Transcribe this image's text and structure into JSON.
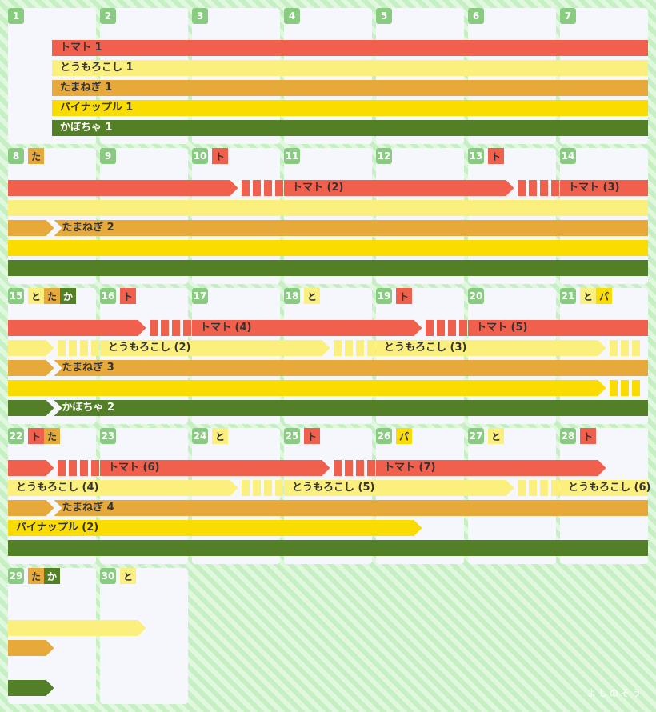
{
  "crops": {
    "tomato": {
      "label": "トマト",
      "short": "ト",
      "color": "#f0604d",
      "text_color": "#333333"
    },
    "corn": {
      "label": "とうもろこし",
      "short": "と",
      "color": "#fbef7e",
      "text_color": "#333333"
    },
    "onion": {
      "label": "たまねぎ",
      "short": "た",
      "color": "#e7a93a",
      "text_color": "#333333"
    },
    "pineapple": {
      "label": "パイナップル",
      "short": "パ",
      "color": "#fbdc00",
      "text_color": "#333333"
    },
    "pumpkin": {
      "label": "かぼちゃ",
      "short": "か",
      "color": "#537f27",
      "text_color": "#ffffff"
    }
  },
  "days": [
    {
      "day": 1,
      "badges": []
    },
    {
      "day": 2,
      "badges": []
    },
    {
      "day": 3,
      "badges": []
    },
    {
      "day": 4,
      "badges": []
    },
    {
      "day": 5,
      "badges": []
    },
    {
      "day": 6,
      "badges": []
    },
    {
      "day": 7,
      "badges": []
    },
    {
      "day": 8,
      "badges": [
        "onion"
      ]
    },
    {
      "day": 9,
      "badges": []
    },
    {
      "day": 10,
      "badges": [
        "tomato"
      ]
    },
    {
      "day": 11,
      "badges": []
    },
    {
      "day": 12,
      "badges": []
    },
    {
      "day": 13,
      "badges": [
        "tomato"
      ]
    },
    {
      "day": 14,
      "badges": []
    },
    {
      "day": 15,
      "badges": [
        "corn",
        "onion",
        "pumpkin"
      ]
    },
    {
      "day": 16,
      "badges": [
        "tomato"
      ]
    },
    {
      "day": 17,
      "badges": []
    },
    {
      "day": 18,
      "badges": [
        "corn"
      ]
    },
    {
      "day": 19,
      "badges": [
        "tomato"
      ]
    },
    {
      "day": 20,
      "badges": []
    },
    {
      "day": 21,
      "badges": [
        "corn",
        "pineapple"
      ]
    },
    {
      "day": 22,
      "badges": [
        "tomato",
        "onion"
      ]
    },
    {
      "day": 23,
      "badges": []
    },
    {
      "day": 24,
      "badges": [
        "corn"
      ]
    },
    {
      "day": 25,
      "badges": [
        "tomato"
      ]
    },
    {
      "day": 26,
      "badges": [
        "pineapple"
      ]
    },
    {
      "day": 27,
      "badges": [
        "corn"
      ]
    },
    {
      "day": 28,
      "badges": [
        "tomato"
      ]
    },
    {
      "day": 29,
      "badges": [
        "onion",
        "pumpkin"
      ]
    },
    {
      "day": 30,
      "badges": [
        "corn"
      ]
    }
  ],
  "weeks": [
    {
      "segments": [
        {
          "crop": "tomato",
          "from": 1,
          "to": 7,
          "label": "トマト 1",
          "lead": true
        },
        {
          "crop": "corn",
          "from": 1,
          "to": 7,
          "label": "とうもろこし 1",
          "lead": true
        },
        {
          "crop": "onion",
          "from": 1,
          "to": 7,
          "label": "たまねぎ 1",
          "lead": true
        },
        {
          "crop": "pineapple",
          "from": 1,
          "to": 7,
          "label": "パイナップル 1",
          "lead": true
        },
        {
          "crop": "pumpkin",
          "from": 1,
          "to": 7,
          "label": "かぼちゃ 1",
          "lead": true
        }
      ]
    },
    {
      "segments": [
        {
          "crop": "tomato",
          "from": 0,
          "to": 2.5,
          "label": "",
          "arrow": true
        },
        {
          "crop": "tomato",
          "dashes_from": 2.5,
          "to": 3
        },
        {
          "crop": "tomato",
          "from": 3,
          "to": 5.5,
          "label": "トマト (2)",
          "arrow": true
        },
        {
          "crop": "tomato",
          "dashes_from": 5.5,
          "to": 6
        },
        {
          "crop": "tomato",
          "from": 6,
          "to": 7,
          "label": "トマト (3)"
        },
        {
          "crop": "corn",
          "from": 0,
          "to": 7,
          "label": ""
        },
        {
          "crop": "onion",
          "from": 0,
          "to": 0.5,
          "label": "",
          "arrow": true
        },
        {
          "crop": "onion",
          "from": 0.5,
          "to": 7,
          "label": "たまねぎ 2",
          "notch": true
        },
        {
          "crop": "pineapple",
          "from": 0,
          "to": 7,
          "label": ""
        },
        {
          "crop": "pumpkin",
          "from": 0,
          "to": 7,
          "label": ""
        }
      ]
    },
    {
      "segments": [
        {
          "crop": "tomato",
          "from": 0,
          "to": 1.5,
          "label": "",
          "arrow": true
        },
        {
          "crop": "tomato",
          "dashes_from": 1.5,
          "to": 2
        },
        {
          "crop": "tomato",
          "from": 2,
          "to": 4.5,
          "label": "トマト (4)",
          "arrow": true
        },
        {
          "crop": "tomato",
          "dashes_from": 4.5,
          "to": 5
        },
        {
          "crop": "tomato",
          "from": 5,
          "to": 7,
          "label": "トマト (5)"
        },
        {
          "crop": "corn",
          "from": 0,
          "to": 0.5,
          "label": "",
          "arrow": true
        },
        {
          "crop": "corn",
          "dashes_from": 0.5,
          "to": 1
        },
        {
          "crop": "corn",
          "from": 1,
          "to": 3.5,
          "label": "とうもろこし (2)",
          "arrow": true
        },
        {
          "crop": "corn",
          "dashes_from": 3.5,
          "to": 4
        },
        {
          "crop": "corn",
          "from": 4,
          "to": 6.5,
          "label": "とうもろこし (3)",
          "arrow": true
        },
        {
          "crop": "corn",
          "dashes_from": 6.5,
          "to": 7
        },
        {
          "crop": "onion",
          "from": 0,
          "to": 0.5,
          "label": "",
          "arrow": true
        },
        {
          "crop": "onion",
          "from": 0.5,
          "to": 7,
          "label": "たまねぎ 3",
          "notch": true
        },
        {
          "crop": "pineapple",
          "from": 0,
          "to": 6.5,
          "label": "",
          "arrow": true
        },
        {
          "crop": "pineapple",
          "dashes_from": 6.5,
          "to": 7
        },
        {
          "crop": "pumpkin",
          "from": 0,
          "to": 0.5,
          "label": "",
          "arrow": true
        },
        {
          "crop": "pumpkin",
          "from": 0.5,
          "to": 7,
          "label": "かぼちゃ 2",
          "notch": true
        }
      ]
    },
    {
      "segments": [
        {
          "crop": "tomato",
          "from": 0,
          "to": 0.5,
          "label": "",
          "arrow": true
        },
        {
          "crop": "tomato",
          "dashes_from": 0.5,
          "to": 1
        },
        {
          "crop": "tomato",
          "from": 1,
          "to": 3.5,
          "label": "トマト (6)",
          "arrow": true
        },
        {
          "crop": "tomato",
          "dashes_from": 3.5,
          "to": 4
        },
        {
          "crop": "tomato",
          "from": 4,
          "to": 6.5,
          "label": "トマト (7)",
          "arrow": true
        },
        {
          "crop": "corn",
          "from": 0,
          "to": 2.5,
          "label": "とうもろこし (4)",
          "arrow": true
        },
        {
          "crop": "corn",
          "dashes_from": 2.5,
          "to": 3
        },
        {
          "crop": "corn",
          "from": 3,
          "to": 5.5,
          "label": "とうもろこし (5)",
          "arrow": true
        },
        {
          "crop": "corn",
          "dashes_from": 5.5,
          "to": 6
        },
        {
          "crop": "corn",
          "from": 6,
          "to": 7,
          "label": "とうもろこし (6)"
        },
        {
          "crop": "onion",
          "from": 0,
          "to": 0.5,
          "label": "",
          "arrow": true
        },
        {
          "crop": "onion",
          "from": 0.5,
          "to": 7,
          "label": "たまねぎ 4",
          "notch": true
        },
        {
          "crop": "pineapple",
          "from": 0,
          "to": 4.5,
          "label": "パイナップル (2)",
          "arrow": true
        },
        {
          "crop": "pumpkin",
          "from": 0,
          "to": 7,
          "label": ""
        }
      ]
    },
    {
      "segments": [
        {
          "crop": "corn",
          "from": 0,
          "to": 1.5,
          "label": "",
          "arrow": true
        },
        {
          "crop": "onion",
          "from": 0,
          "to": 0.5,
          "label": "",
          "arrow": true
        },
        {
          "crop": "pumpkin",
          "from": 0,
          "to": 0.5,
          "label": "",
          "arrow": true
        }
      ]
    }
  ],
  "watermark": "よしのそう"
}
